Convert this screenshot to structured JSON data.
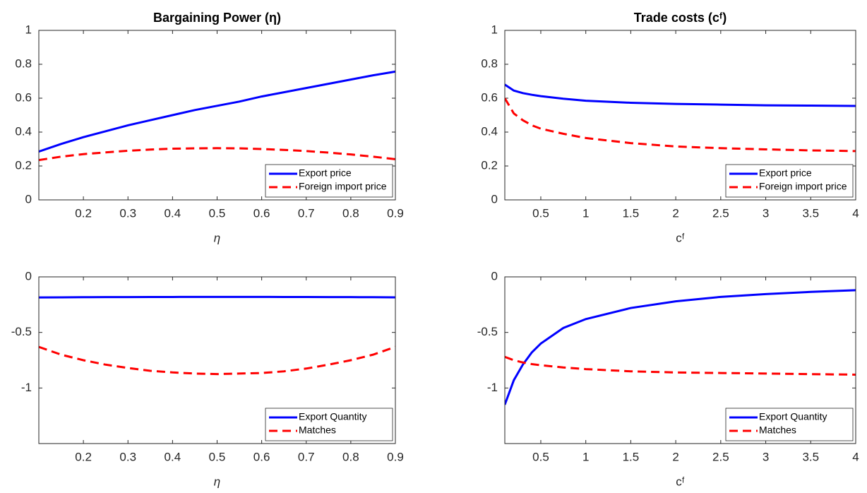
{
  "chart_data": [
    {
      "type": "line",
      "title": "Bargaining Power (η)",
      "xlabel": "η",
      "x": [
        0.1,
        0.15,
        0.2,
        0.25,
        0.3,
        0.35,
        0.4,
        0.45,
        0.5,
        0.55,
        0.6,
        0.65,
        0.7,
        0.75,
        0.8,
        0.85,
        0.9
      ],
      "series": [
        {
          "name": "Export price",
          "color": "#0000ff",
          "dash": "solid",
          "values": [
            0.285,
            0.33,
            0.37,
            0.405,
            0.44,
            0.47,
            0.5,
            0.53,
            0.555,
            0.58,
            0.61,
            0.635,
            0.66,
            0.685,
            0.71,
            0.735,
            0.757
          ]
        },
        {
          "name": "Foreign import price",
          "color": "#ff0000",
          "dash": "dashed",
          "values": [
            0.235,
            0.255,
            0.27,
            0.28,
            0.29,
            0.297,
            0.302,
            0.304,
            0.305,
            0.304,
            0.3,
            0.295,
            0.288,
            0.279,
            0.268,
            0.255,
            0.24
          ]
        }
      ],
      "xlim": [
        0.1,
        0.9
      ],
      "ylim": [
        0,
        1
      ],
      "xticks": [
        0.2,
        0.3,
        0.4,
        0.5,
        0.6,
        0.7,
        0.8,
        0.9
      ],
      "yticks": [
        0,
        0.2,
        0.4,
        0.6,
        0.8,
        1
      ],
      "legend": "lower right"
    },
    {
      "type": "line",
      "title": "Trade costs (cᶠ)",
      "xlabel": "cᶠ",
      "x": [
        0.1,
        0.2,
        0.3,
        0.4,
        0.5,
        0.75,
        1,
        1.5,
        2,
        2.5,
        3,
        3.5,
        4
      ],
      "series": [
        {
          "name": "Export price",
          "color": "#0000ff",
          "dash": "solid",
          "values": [
            0.68,
            0.645,
            0.63,
            0.62,
            0.612,
            0.597,
            0.585,
            0.573,
            0.566,
            0.562,
            0.558,
            0.556,
            0.554
          ]
        },
        {
          "name": "Foreign import price",
          "color": "#ff0000",
          "dash": "dashed",
          "values": [
            0.6,
            0.51,
            0.47,
            0.44,
            0.42,
            0.39,
            0.365,
            0.335,
            0.315,
            0.305,
            0.298,
            0.292,
            0.288
          ]
        }
      ],
      "xlim": [
        0.1,
        4
      ],
      "ylim": [
        0,
        1
      ],
      "xticks": [
        0.5,
        1,
        1.5,
        2,
        2.5,
        3,
        3.5,
        4
      ],
      "yticks": [
        0,
        0.2,
        0.4,
        0.6,
        0.8,
        1
      ],
      "legend": "lower right"
    },
    {
      "type": "line",
      "xlabel": "η",
      "x": [
        0.1,
        0.15,
        0.2,
        0.25,
        0.3,
        0.35,
        0.4,
        0.45,
        0.5,
        0.55,
        0.6,
        0.65,
        0.7,
        0.75,
        0.8,
        0.85,
        0.9
      ],
      "series": [
        {
          "name": "Export Quantity",
          "color": "#0000ff",
          "dash": "solid",
          "values": [
            -0.185,
            -0.184,
            -0.183,
            -0.182,
            -0.182,
            -0.181,
            -0.181,
            -0.18,
            -0.18,
            -0.18,
            -0.18,
            -0.181,
            -0.181,
            -0.182,
            -0.182,
            -0.183,
            -0.184
          ]
        },
        {
          "name": "Matches",
          "color": "#ff0000",
          "dash": "dashed",
          "values": [
            -0.63,
            -0.7,
            -0.75,
            -0.79,
            -0.82,
            -0.845,
            -0.86,
            -0.87,
            -0.875,
            -0.87,
            -0.865,
            -0.85,
            -0.825,
            -0.79,
            -0.75,
            -0.7,
            -0.63
          ]
        }
      ],
      "xlim": [
        0.1,
        0.9
      ],
      "ylim": [
        -1.5,
        0
      ],
      "xticks": [
        0.2,
        0.3,
        0.4,
        0.5,
        0.6,
        0.7,
        0.8,
        0.9
      ],
      "yticks": [
        -1,
        -0.5,
        0
      ],
      "legend": "lower right"
    },
    {
      "type": "line",
      "xlabel": "cᶠ",
      "x": [
        0.1,
        0.2,
        0.3,
        0.4,
        0.5,
        0.75,
        1,
        1.5,
        2,
        2.5,
        3,
        3.5,
        4
      ],
      "series": [
        {
          "name": "Export Quantity",
          "color": "#0000ff",
          "dash": "solid",
          "values": [
            -1.15,
            -0.93,
            -0.79,
            -0.68,
            -0.6,
            -0.46,
            -0.38,
            -0.28,
            -0.22,
            -0.18,
            -0.155,
            -0.135,
            -0.12
          ]
        },
        {
          "name": "Matches",
          "color": "#ff0000",
          "dash": "dashed",
          "values": [
            -0.72,
            -0.75,
            -0.77,
            -0.785,
            -0.795,
            -0.815,
            -0.83,
            -0.85,
            -0.86,
            -0.865,
            -0.87,
            -0.875,
            -0.88
          ]
        }
      ],
      "xlim": [
        0.1,
        4
      ],
      "ylim": [
        -1.5,
        0
      ],
      "xticks": [
        0.5,
        1,
        1.5,
        2,
        2.5,
        3,
        3.5,
        4
      ],
      "yticks": [
        -1,
        -0.5,
        0
      ],
      "legend": "lower right"
    }
  ]
}
